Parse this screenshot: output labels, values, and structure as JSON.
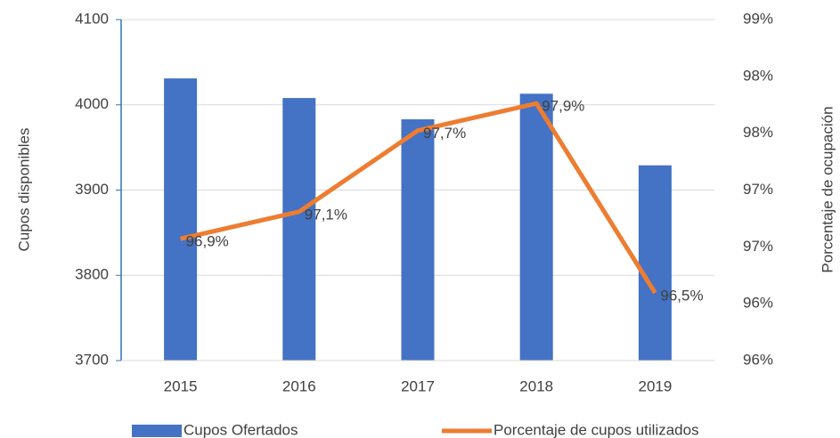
{
  "chart_data": {
    "type": "bar_line",
    "categories": [
      "2015",
      "2016",
      "2017",
      "2018",
      "2019"
    ],
    "ylabel": "Cupos disponibles",
    "y2label": "Porcentaje de ocupación",
    "ylim": [
      3700,
      4100
    ],
    "yticks": [
      3700,
      3800,
      3900,
      4000,
      4100
    ],
    "y2lim": [
      96.0,
      98.52
    ],
    "y2ticks": [
      {
        "value": 96.0,
        "label": "96%"
      },
      {
        "value": 96.42,
        "label": "96%"
      },
      {
        "value": 96.84,
        "label": "97%"
      },
      {
        "value": 97.26,
        "label": "97%"
      },
      {
        "value": 97.68,
        "label": "98%"
      },
      {
        "value": 98.1,
        "label": "98%"
      },
      {
        "value": 98.52,
        "label": "99%"
      }
    ],
    "grid": true,
    "series": [
      {
        "name": "Cupos Ofertados",
        "type": "bar",
        "color": "#4472c4",
        "values": [
          4031,
          4008,
          3983,
          4013,
          3929
        ]
      },
      {
        "name": "Porcentaje de cupos utilizados",
        "type": "line",
        "axis": "y2",
        "color": "#ed7d31",
        "values": [
          96.9,
          97.1,
          97.7,
          97.9,
          96.5
        ],
        "value_labels": [
          "96,9%",
          "97,1%",
          "97,7%",
          "97,9%",
          "96,5%"
        ]
      }
    ]
  }
}
